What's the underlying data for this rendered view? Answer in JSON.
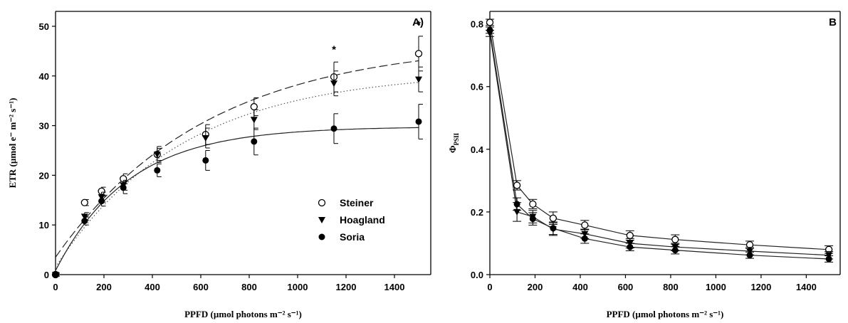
{
  "chart_data": [
    {
      "type": "scatter",
      "panel_label": "A)",
      "title": "",
      "xlabel": "PPFD (µmol photons m⁻² s⁻¹)",
      "ylabel": "ETR (µmol e⁻ m⁻² s⁻¹)",
      "xlim": [
        0,
        1550
      ],
      "ylim": [
        0,
        53
      ],
      "xticks": [
        0,
        200,
        400,
        600,
        800,
        1000,
        1200,
        1400
      ],
      "yticks": [
        0,
        10,
        20,
        30,
        40,
        50
      ],
      "grid": false,
      "legend_position": "bottom-right",
      "x": [
        0,
        120,
        190,
        280,
        420,
        620,
        820,
        1150,
        1500
      ],
      "series": [
        {
          "name": "Steiner",
          "marker": "open-circle",
          "values": [
            0,
            14.5,
            16.8,
            19.3,
            24.2,
            28.2,
            33.8,
            39.8,
            44.5
          ],
          "err": [
            0.3,
            0.6,
            0.8,
            1.0,
            1.6,
            2.0,
            1.8,
            3.0,
            3.5
          ],
          "fit_ymax": 47,
          "fit_k": 0.0016,
          "fit_y0": 3.5,
          "fit_style": "long-dash"
        },
        {
          "name": "Hoagland",
          "marker": "filled-triangle-down",
          "values": [
            0,
            11.7,
            15.6,
            18.0,
            24.2,
            27.5,
            31.2,
            38.5,
            39.3
          ],
          "err": [
            0.3,
            0.8,
            1.0,
            1.0,
            1.2,
            2.0,
            2.0,
            2.5,
            2.5
          ],
          "fit_ymax": 41,
          "fit_k": 0.0019,
          "fit_y0": 1.5,
          "fit_style": "dotted"
        },
        {
          "name": "Soria",
          "marker": "filled-circle",
          "values": [
            0,
            10.8,
            14.8,
            17.5,
            21.0,
            23.0,
            26.8,
            29.4,
            30.8
          ],
          "err": [
            0.3,
            0.8,
            1.0,
            1.2,
            1.3,
            2.0,
            2.7,
            3.0,
            3.5
          ],
          "fit_ymax": 29.8,
          "fit_k": 0.0033,
          "fit_y0": 0.8,
          "fit_style": "solid"
        }
      ],
      "annotations": [
        {
          "text": "*",
          "x": 1150,
          "y": 45.5
        },
        {
          "text": "*",
          "x": 1500,
          "y": 50.5
        }
      ]
    },
    {
      "type": "line",
      "panel_label": "B",
      "title": "",
      "xlabel": "PPFD (µmol photons m⁻² s⁻¹)",
      "ylabel": "ΦPSII",
      "ylabel_main": "Φ",
      "ylabel_sub": "PSII",
      "xlim": [
        0,
        1550
      ],
      "ylim": [
        0,
        0.84
      ],
      "xticks": [
        0,
        200,
        400,
        600,
        800,
        1000,
        1200,
        1400
      ],
      "yticks": [
        0.0,
        0.2,
        0.4,
        0.6,
        0.8
      ],
      "ytick_labels": [
        "0.0",
        "0.2",
        "0.4",
        "0.6",
        "0.8"
      ],
      "grid": false,
      "x": [
        0,
        120,
        190,
        280,
        420,
        620,
        820,
        1150,
        1500
      ],
      "series": [
        {
          "name": "Steiner",
          "marker": "open-circle",
          "values": [
            0.805,
            0.285,
            0.225,
            0.18,
            0.158,
            0.125,
            0.112,
            0.095,
            0.08
          ],
          "err": [
            0.01,
            0.015,
            0.015,
            0.02,
            0.015,
            0.015,
            0.015,
            0.012,
            0.012
          ]
        },
        {
          "name": "Hoagland",
          "marker": "filled-triangle-down",
          "values": [
            0.77,
            0.2,
            0.185,
            0.145,
            0.13,
            0.1,
            0.088,
            0.075,
            0.062
          ],
          "err": [
            0.01,
            0.03,
            0.02,
            0.02,
            0.015,
            0.015,
            0.012,
            0.012,
            0.012
          ]
        },
        {
          "name": "Soria",
          "marker": "filled-circle",
          "values": [
            0.78,
            0.225,
            0.178,
            0.148,
            0.115,
            0.088,
            0.078,
            0.062,
            0.05
          ],
          "err": [
            0.01,
            0.02,
            0.02,
            0.02,
            0.015,
            0.012,
            0.012,
            0.01,
            0.01
          ]
        }
      ]
    }
  ]
}
